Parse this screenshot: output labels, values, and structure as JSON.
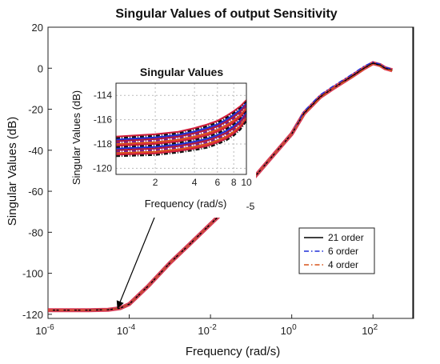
{
  "chart_data": [
    {
      "type": "line",
      "title": "Singular Values of output Sensitivity",
      "xlabel": "Frequency (rad/s)",
      "ylabel": "Singular Values (dB)",
      "xscale": "log",
      "xlim": [
        1e-06,
        1000
      ],
      "ylim": [
        -122,
        20
      ],
      "xticks": [
        -6,
        -4,
        -2,
        0,
        2
      ],
      "xtick_labels": {
        "base": "10",
        "exps": [
          "-6",
          "-4",
          "-2",
          "0",
          "2"
        ]
      },
      "yticks": [
        20,
        0,
        -20,
        -40,
        -60,
        -80,
        -100,
        -120
      ],
      "grid": false,
      "legend_position": "lower-right",
      "series": [
        {
          "name": "21 order",
          "color": "#000000",
          "dash": "solid",
          "x": [
            1e-06,
            1e-05,
            3e-05,
            6e-05,
            0.0001,
            0.0003,
            0.001,
            0.003,
            0.01,
            0.03,
            0.1,
            0.3,
            1,
            2,
            5,
            10,
            30,
            60,
            100,
            150,
            200,
            300
          ],
          "y": [
            -118,
            -118,
            -117.8,
            -117,
            -115,
            -106,
            -95,
            -86,
            -76,
            -67,
            -55,
            -44,
            -32,
            -22,
            -14,
            -10,
            -4,
            0,
            2.5,
            1.5,
            0,
            -1
          ]
        },
        {
          "name": "6 order",
          "color": "#1f2fd8",
          "dash": "dashdot",
          "x": [
            1e-06,
            1e-05,
            3e-05,
            6e-05,
            0.0001,
            0.0003,
            0.001,
            0.003,
            0.01,
            0.03,
            0.1,
            0.3,
            1,
            2,
            5,
            10,
            30,
            60,
            100,
            150,
            200,
            300
          ],
          "y": [
            -118,
            -118,
            -117.8,
            -117,
            -115,
            -106,
            -95,
            -86,
            -76,
            -67,
            -55,
            -44,
            -32,
            -21,
            -13,
            -9,
            -3,
            1,
            3,
            2,
            0.5,
            -0.5
          ]
        },
        {
          "name": "4 order",
          "color": "#d9541a",
          "dash": "dashdot",
          "x": [
            1e-06,
            1e-05,
            3e-05,
            6e-05,
            0.0001,
            0.0003,
            0.001,
            0.003,
            0.01,
            0.03,
            0.1,
            0.3,
            1,
            2,
            5,
            10,
            30,
            60,
            100,
            150,
            200,
            300
          ],
          "y": [
            -118,
            -118,
            -117.8,
            -117,
            -115,
            -106,
            -95,
            -86,
            -76,
            -67,
            -55,
            -44,
            -32,
            -22.5,
            -14.5,
            -10,
            -4.5,
            -0.5,
            2,
            1,
            -0.5,
            -1.2
          ]
        }
      ]
    },
    {
      "type": "line",
      "title": "Singular Values",
      "xlabel": "Frequency (rad/s)",
      "ylabel": "Singular Values (dB)",
      "xscale": "log",
      "xlim": [
        1e-05,
        0.0001
      ],
      "ylim": [
        -120.5,
        -113
      ],
      "xtick_values": [
        2e-05,
        4e-05,
        6e-05,
        8e-05,
        0.0001
      ],
      "xtick_labels": [
        "2",
        "4",
        "6",
        "8",
        "10"
      ],
      "x_exponent_label": "-5",
      "yticks": [
        -114,
        -116,
        -118,
        -120
      ],
      "grid": true,
      "series_band": {
        "x": [
          1e-05,
          2e-05,
          3e-05,
          4e-05,
          5e-05,
          6e-05,
          7e-05,
          8e-05,
          9e-05,
          0.0001
        ],
        "upper": [
          -117.4,
          -117.2,
          -117,
          -116.7,
          -116.4,
          -116.1,
          -115.7,
          -115.3,
          -114.9,
          -114.4
        ],
        "lower": [
          -119.0,
          -118.9,
          -118.7,
          -118.5,
          -118.3,
          -118.0,
          -117.7,
          -117.3,
          -116.8,
          -116.1
        ]
      },
      "line_count": 14
    }
  ],
  "legend": {
    "entries": [
      {
        "label": "21 order",
        "color": "#000000",
        "dash": "solid"
      },
      {
        "label": "6 order",
        "color": "#1f2fd8",
        "dash": "dashdot"
      },
      {
        "label": "4 order",
        "color": "#d9541a",
        "dash": "dashdot"
      }
    ]
  }
}
